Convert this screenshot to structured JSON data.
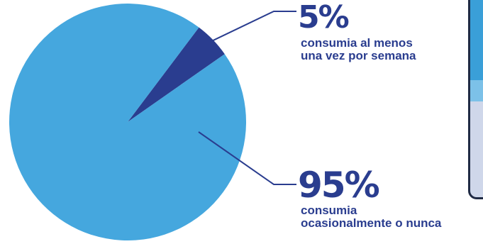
{
  "chart_data": {
    "type": "pie",
    "title": "",
    "slices": [
      {
        "label": "consumia al menos una vez por semana",
        "value": 5,
        "value_label": "5%",
        "color": "#2a3d8f"
      },
      {
        "label": "consumia ocasionalmente o nunca",
        "value": 95,
        "value_label": "95%",
        "color": "#45a7de"
      }
    ]
  },
  "labels": {
    "small": {
      "pct": "5%",
      "line1": "consumia al menos",
      "line2": "una vez por semana"
    },
    "large": {
      "pct": "95%",
      "line1": "consumia",
      "line2": "ocasionalmente o nunca"
    }
  },
  "colors": {
    "leader_line": "#2a3d8f",
    "device_frame": "#1f2a44"
  }
}
